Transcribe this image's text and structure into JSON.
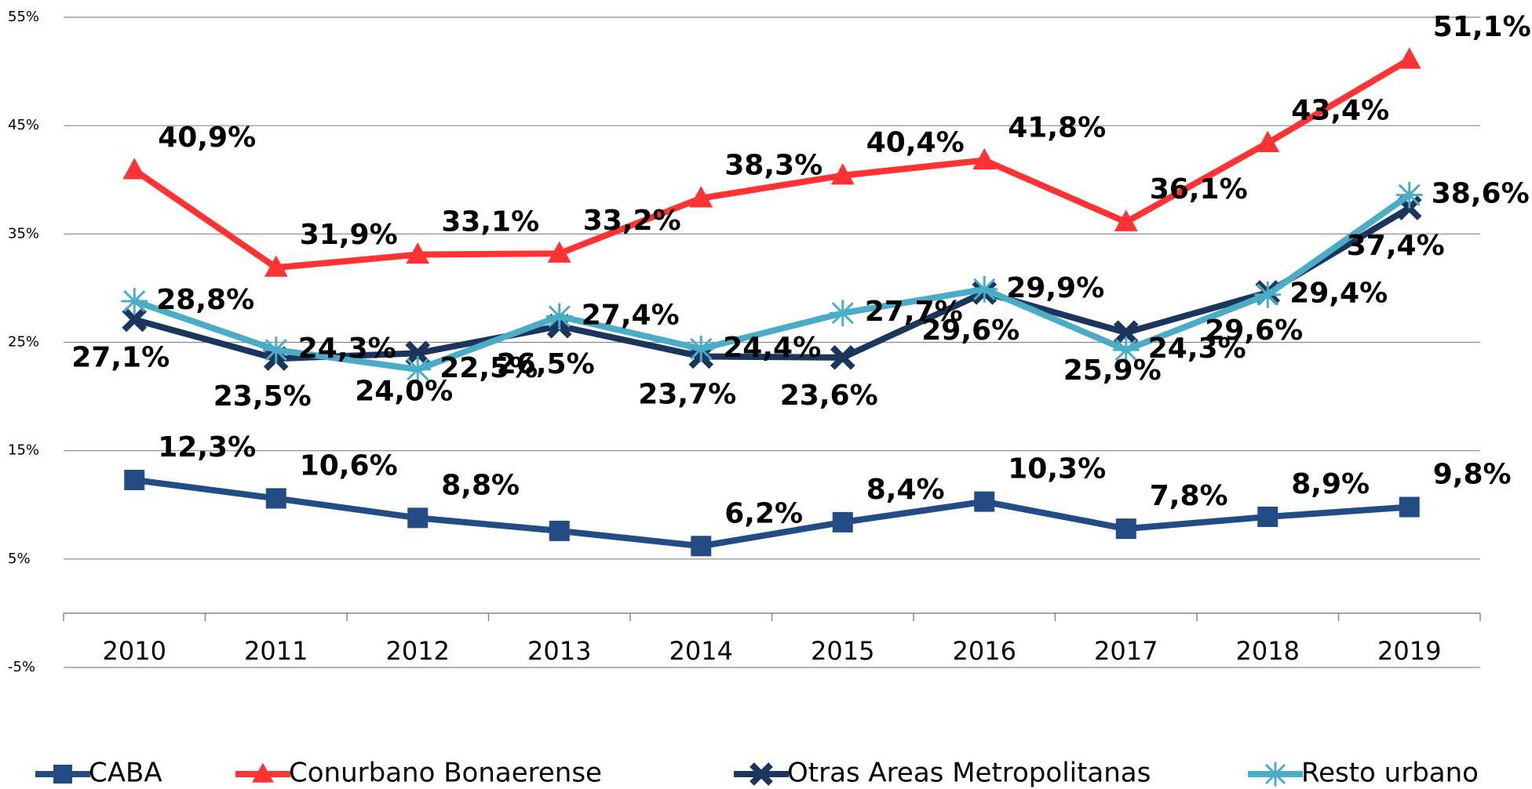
{
  "chart_data": {
    "type": "line",
    "categories": [
      "2010",
      "2011",
      "2012",
      "2013",
      "2014",
      "2015",
      "2016",
      "2017",
      "2018",
      "2019"
    ],
    "series": [
      {
        "name": "CABA",
        "color": "#234c85",
        "marker": "square",
        "values": [
          12.3,
          10.6,
          8.8,
          7.6,
          6.2,
          8.4,
          10.3,
          7.8,
          8.9,
          9.8
        ],
        "value_labels": [
          "12,3%",
          "10,6%",
          "8,8%",
          null,
          "6,2%",
          "8,4%",
          "10,3%",
          "7,8%",
          "8,9%",
          "9,8%"
        ]
      },
      {
        "name": "Conurbano Bonaerense",
        "color": "#ff3333",
        "marker": "triangle",
        "values": [
          40.9,
          31.9,
          33.1,
          33.2,
          38.3,
          40.4,
          41.8,
          36.1,
          43.4,
          51.1
        ],
        "value_labels": [
          "40,9%",
          "31,9%",
          "33,1%",
          "33,2%",
          "38,3%",
          "40,4%",
          "41,8%",
          "36,1%",
          "43,4%",
          "51,1%"
        ]
      },
      {
        "name": "Otras Areas Metropolitanas",
        "color": "#1b365d",
        "marker": "x",
        "values": [
          27.1,
          23.5,
          24.0,
          26.5,
          23.7,
          23.6,
          29.6,
          25.9,
          29.6,
          37.4
        ],
        "value_labels": [
          "27,1%",
          "23,5%",
          "24,0%",
          "26,5%",
          "23,7%",
          "23,6%",
          "29,6%",
          "25,9%",
          "29,6%",
          "37,4%"
        ]
      },
      {
        "name": "Resto urbano",
        "color": "#4bacc6",
        "marker": "asterisk",
        "values": [
          28.8,
          24.3,
          22.5,
          27.4,
          24.4,
          27.7,
          29.9,
          24.3,
          29.4,
          38.6
        ],
        "value_labels": [
          "28,8%",
          "24,3%",
          "22,5%",
          "27,4%",
          "24,4%",
          "27,7%",
          "29,9%",
          "24,3%",
          "29,4%",
          "38,6%"
        ]
      }
    ],
    "ylim": [
      -5,
      55
    ],
    "yticks": [
      {
        "value": -5,
        "label": "-5%"
      },
      {
        "value": 5,
        "label": "5%"
      },
      {
        "value": 15,
        "label": "15%"
      },
      {
        "value": 25,
        "label": "25%"
      },
      {
        "value": 35,
        "label": "35%"
      },
      {
        "value": 45,
        "label": "45%"
      },
      {
        "value": 55,
        "label": "55%"
      }
    ],
    "grid": true,
    "legend": "bottom"
  }
}
